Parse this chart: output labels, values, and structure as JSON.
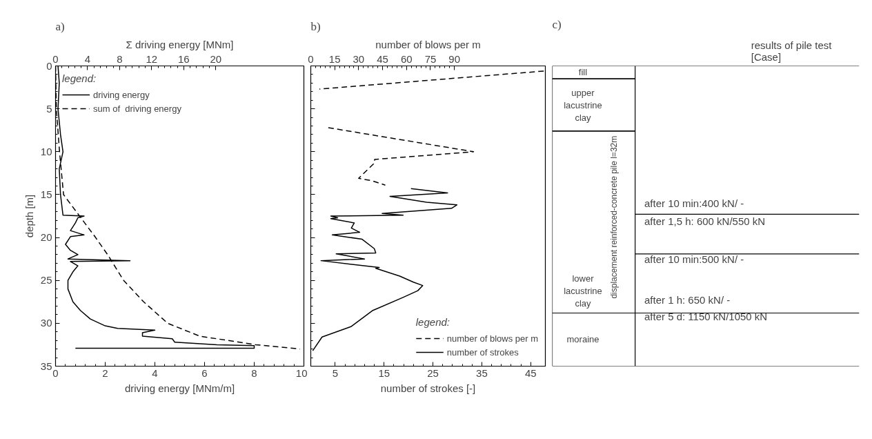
{
  "chart_data": [
    {
      "type": "line",
      "orientation": "horizontal",
      "title": "a)",
      "xlabel": "driving energy [MNm/m]",
      "x2label": "Σ driving energy [MNm]",
      "ylabel": "depth [m]",
      "xlim": [
        0,
        10
      ],
      "xticks": [
        0,
        2,
        4,
        6,
        8,
        10
      ],
      "x2lim": [
        0,
        31
      ],
      "x2ticks": [
        0,
        4,
        8,
        12,
        16,
        20
      ],
      "ylim": [
        35,
        0
      ],
      "yticks": [
        0,
        5,
        10,
        15,
        20,
        25,
        30,
        35
      ],
      "grid": false,
      "legend": "top left",
      "legend_title": "legend:",
      "series": [
        {
          "name": "driving energy",
          "color": "#000000",
          "line_style": "solid",
          "x": [
            0,
            2,
            5,
            8,
            10,
            12,
            15,
            17.4,
            17.5,
            17.7,
            18.3,
            19.2,
            19.7,
            19.9,
            20.8,
            21.5,
            22,
            22.5,
            22.7,
            22.8,
            23.3,
            24,
            25,
            26,
            27.5,
            28.5,
            29.5,
            30.3,
            30.6,
            30.8,
            31.1,
            31.5,
            31.8,
            32.2,
            32.5,
            32.6,
            32.9,
            32.9
          ],
          "values": [
            0.1,
            0.15,
            0.1,
            0.2,
            0.3,
            0.15,
            0.2,
            0.3,
            1.15,
            0.9,
            0.8,
            0.6,
            1.15,
            0.6,
            0.4,
            0.6,
            0.9,
            0.5,
            3.0,
            0.6,
            0.9,
            0.7,
            0.5,
            0.5,
            0.7,
            1.0,
            1.4,
            2.0,
            2.5,
            4.0,
            3.5,
            3.5,
            4.7,
            4.8,
            6.5,
            8.0,
            8.0,
            0.8
          ]
        },
        {
          "name": "sum of  driving energy",
          "color": "#000000",
          "line_style": "dashed",
          "axis": "x2",
          "x": [
            0,
            5,
            10,
            15,
            17.5,
            20,
            22,
            25,
            27.5,
            30,
            31.5,
            32.5,
            33
          ],
          "values": [
            0,
            0.1,
            0.5,
            1.0,
            3,
            5,
            6.5,
            8.5,
            11,
            14,
            18,
            25,
            30.5
          ]
        }
      ]
    },
    {
      "type": "line",
      "orientation": "horizontal",
      "title": "b)",
      "xlabel": "number of strokes [-]",
      "x2label": "number of blows per m",
      "xlim": [
        0,
        48
      ],
      "xticks": [
        5,
        15,
        25,
        35,
        45
      ],
      "x2lim": [
        0,
        147
      ],
      "x2ticks": [
        0,
        15,
        30,
        45,
        60,
        75,
        90
      ],
      "ylim": [
        35,
        0
      ],
      "yticks": [
        0,
        5,
        10,
        15,
        20,
        25,
        30,
        35
      ],
      "tick_labels": "x",
      "grid": false,
      "legend": "bottom right",
      "legend_title": "legend:",
      "series": [
        {
          "name": "number of blows per m",
          "color": "#000000",
          "line_style": "dashed",
          "axis": "x2",
          "x": [
            0.6,
            2.7,
            5,
            7.2,
            10.0,
            10.9,
            11.3,
            13.1,
            13.4,
            13.9
          ],
          "values": [
            146,
            5.4,
            null,
            11,
            102,
            40,
            40,
            30,
            38.7,
            46.7
          ]
        },
        {
          "name": "number of strokes",
          "color": "#000000",
          "line_style": "solid",
          "x": [
            14.3,
            14.8,
            15.2,
            15.9,
            16.2,
            16.6,
            17.2,
            17.4,
            17.5,
            17.7,
            17.8,
            18.3,
            18.9,
            19.4,
            19.7,
            20.2,
            21.3,
            21.8,
            21.9,
            22.5,
            22.7,
            23.5,
            23.6,
            24.5,
            25.2,
            25.6,
            26.2,
            27,
            28.5,
            30.4,
            31.6,
            33.2
          ],
          "values": [
            20.5,
            28,
            16.2,
            23.7,
            29.9,
            28.8,
            14.6,
            18.9,
            4.1,
            5.5,
            4.1,
            8.9,
            8.3,
            10,
            4.4,
            10.5,
            13,
            13.3,
            5.2,
            11,
            2.1,
            14,
            13.3,
            18.2,
            21,
            22.9,
            21.9,
            18.8,
            12.7,
            8.2,
            2.3,
            0.4
          ]
        }
      ]
    },
    {
      "type": "other",
      "title": "c)",
      "subtitle": "results of pile test [Case]",
      "annotations": [
        "fill",
        "upper lacustrine clay",
        "lower lacustrine clay",
        "moraine",
        "displacement reinforced-concrete pile  l=32m",
        "after 10 min:400 kN/ -",
        "after 1,5 h:  600 kN/550 kN",
        "after 10 min:500 kN/ -",
        "after 1 h:       650 kN/ -",
        "after 5 d:      1150 kN/1050 kN"
      ]
    }
  ]
}
